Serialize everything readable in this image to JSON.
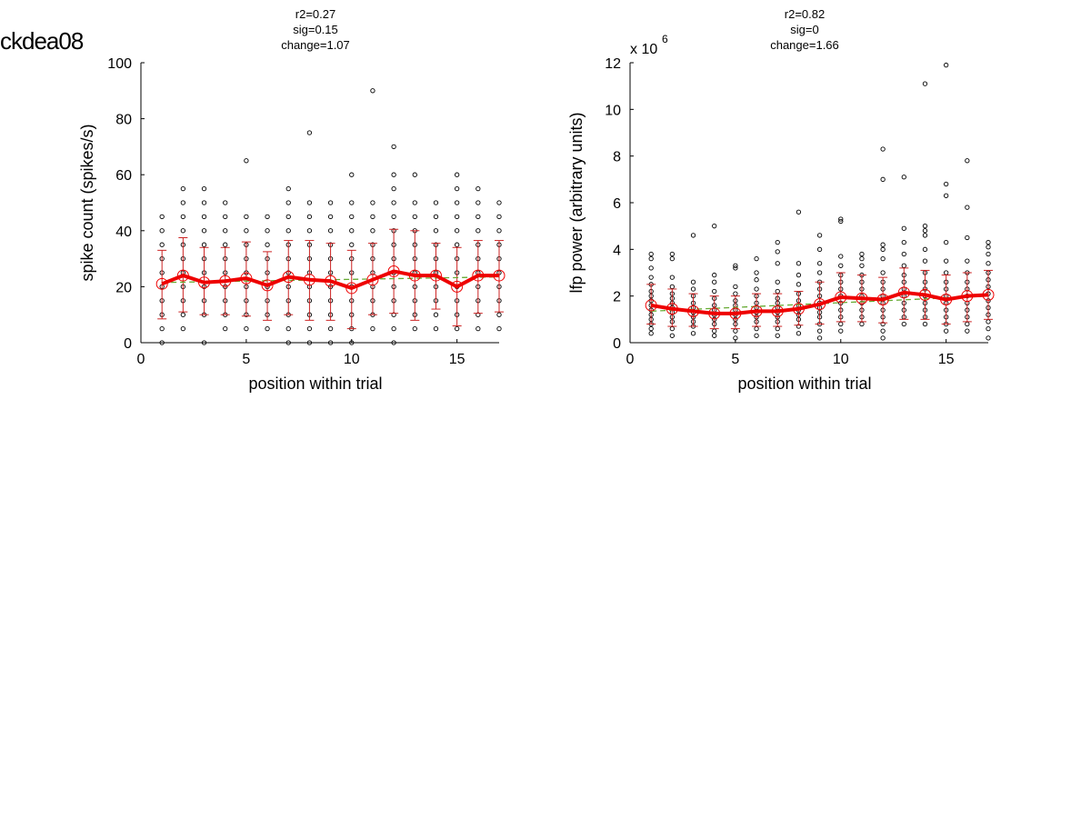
{
  "figure_title": "ckdea08",
  "colors": {
    "mean_line": "#ee0000",
    "error_bar": "#cc2222",
    "trend_line": "#66aa33",
    "points": "#000000"
  },
  "chart_data": [
    {
      "type": "scatter",
      "stats": [
        "r2=0.27",
        "sig=0.15",
        "change=1.07"
      ],
      "xlabel": "position within trial",
      "ylabel": "spike count (spikes/s)",
      "xlim": [
        0,
        17
      ],
      "ylim": [
        0,
        100
      ],
      "xticks": [
        0,
        5,
        10,
        15
      ],
      "yticks": [
        0,
        20,
        40,
        60,
        80,
        100
      ],
      "scale_note": "",
      "positions": [
        1,
        2,
        3,
        4,
        5,
        6,
        7,
        8,
        9,
        10,
        11,
        12,
        13,
        14,
        15,
        16,
        17
      ],
      "mean": [
        21,
        24,
        21.5,
        22,
        23,
        20.5,
        23.5,
        22.5,
        22,
        19.5,
        22.5,
        25.5,
        24,
        24,
        20,
        24,
        24
      ],
      "error_low": [
        8.5,
        11,
        10,
        10,
        9.5,
        8,
        10,
        8,
        8,
        5,
        10,
        10.5,
        8,
        12,
        6,
        10.5,
        11
      ],
      "error_high": [
        33,
        37.5,
        34,
        34,
        36,
        32.5,
        36.5,
        36.5,
        35.5,
        33,
        35.5,
        40.5,
        40,
        35.5,
        34,
        36.5,
        36.5
      ],
      "trend": [
        21.5,
        23.5
      ],
      "points": [
        [
          0,
          5,
          10,
          15,
          20,
          25,
          30,
          35,
          40,
          45
        ],
        [
          5,
          10,
          15,
          20,
          25,
          30,
          35,
          40,
          45,
          50,
          55
        ],
        [
          0,
          10,
          15,
          20,
          25,
          30,
          35,
          40,
          45,
          50,
          55
        ],
        [
          5,
          10,
          15,
          20,
          25,
          30,
          35,
          40,
          45,
          50
        ],
        [
          5,
          10,
          15,
          20,
          25,
          30,
          35,
          40,
          45,
          65
        ],
        [
          5,
          10,
          15,
          20,
          25,
          30,
          35,
          40,
          45
        ],
        [
          0,
          5,
          10,
          15,
          20,
          25,
          30,
          35,
          40,
          45,
          50,
          55
        ],
        [
          0,
          5,
          10,
          15,
          20,
          25,
          30,
          35,
          40,
          45,
          50,
          75
        ],
        [
          0,
          5,
          10,
          15,
          20,
          25,
          30,
          35,
          40,
          45,
          50
        ],
        [
          0,
          5,
          10,
          15,
          20,
          25,
          30,
          35,
          40,
          45,
          50,
          60
        ],
        [
          5,
          10,
          15,
          20,
          25,
          30,
          35,
          40,
          45,
          50,
          90
        ],
        [
          0,
          5,
          10,
          15,
          20,
          25,
          30,
          35,
          40,
          45,
          50,
          55,
          60,
          70
        ],
        [
          5,
          10,
          15,
          20,
          25,
          30,
          35,
          40,
          45,
          50,
          60
        ],
        [
          5,
          10,
          15,
          20,
          25,
          30,
          35,
          40,
          45,
          50
        ],
        [
          5,
          10,
          15,
          20,
          25,
          30,
          35,
          40,
          45,
          50,
          55,
          60
        ],
        [
          5,
          10,
          15,
          20,
          25,
          30,
          35,
          40,
          45,
          50,
          55
        ],
        [
          5,
          10,
          15,
          20,
          25,
          30,
          35,
          40,
          45,
          50
        ]
      ]
    },
    {
      "type": "scatter",
      "stats": [
        "r2=0.82",
        "sig=0",
        "change=1.66"
      ],
      "xlabel": "position within trial",
      "ylabel": "lfp power (arbitrary units)",
      "xlim": [
        0,
        17
      ],
      "ylim": [
        0,
        12
      ],
      "xticks": [
        0,
        5,
        10,
        15
      ],
      "yticks": [
        0,
        2,
        4,
        6,
        8,
        10,
        12
      ],
      "scale_note": "x 10",
      "scale_exponent": "6",
      "positions": [
        1,
        2,
        3,
        4,
        5,
        6,
        7,
        8,
        9,
        10,
        11,
        12,
        13,
        14,
        15,
        16,
        17
      ],
      "mean": [
        1.6,
        1.45,
        1.35,
        1.25,
        1.25,
        1.35,
        1.35,
        1.45,
        1.65,
        1.95,
        1.9,
        1.85,
        2.15,
        2.05,
        1.85,
        2.0,
        2.05
      ],
      "error_low": [
        0.8,
        0.7,
        0.7,
        0.6,
        0.6,
        0.7,
        0.7,
        0.75,
        0.8,
        0.9,
        0.9,
        0.85,
        1.0,
        1.0,
        0.8,
        0.9,
        1.0
      ],
      "error_high": [
        2.5,
        2.3,
        2.1,
        2.0,
        2.0,
        2.1,
        2.1,
        2.2,
        2.6,
        3.0,
        2.9,
        2.8,
        3.2,
        3.1,
        2.9,
        3.0,
        3.1
      ],
      "trend": [
        1.35,
        2.0
      ],
      "points": [
        [
          0.4,
          0.6,
          0.8,
          1.0,
          1.2,
          1.4,
          1.6,
          1.8,
          2.0,
          2.2,
          2.5,
          2.8,
          3.2,
          3.6,
          3.8
        ],
        [
          0.3,
          0.6,
          0.9,
          1.1,
          1.3,
          1.5,
          1.7,
          1.9,
          2.1,
          2.4,
          2.8,
          3.6,
          3.8
        ],
        [
          0.4,
          0.7,
          0.9,
          1.1,
          1.3,
          1.5,
          1.7,
          2.0,
          2.3,
          2.6,
          4.6
        ],
        [
          0.3,
          0.5,
          0.8,
          1.0,
          1.2,
          1.4,
          1.6,
          1.9,
          2.2,
          2.6,
          2.9,
          5.0
        ],
        [
          0.2,
          0.5,
          0.8,
          1.0,
          1.2,
          1.4,
          1.6,
          1.8,
          2.1,
          2.4,
          3.2,
          3.3
        ],
        [
          0.3,
          0.6,
          0.9,
          1.1,
          1.3,
          1.5,
          1.7,
          2.0,
          2.3,
          2.7,
          3.0,
          3.6
        ],
        [
          0.3,
          0.6,
          0.9,
          1.1,
          1.3,
          1.5,
          1.7,
          1.9,
          2.2,
          2.6,
          3.4,
          3.9,
          4.3
        ],
        [
          0.4,
          0.7,
          1.0,
          1.2,
          1.4,
          1.6,
          1.8,
          2.1,
          2.5,
          2.9,
          3.4,
          5.6
        ],
        [
          0.2,
          0.5,
          0.8,
          1.1,
          1.3,
          1.5,
          1.7,
          2.0,
          2.3,
          2.6,
          3.0,
          3.4,
          4.0,
          4.6
        ],
        [
          0.5,
          0.8,
          1.1,
          1.4,
          1.7,
          2.0,
          2.3,
          2.6,
          2.9,
          3.3,
          3.7,
          5.2,
          5.3
        ],
        [
          0.8,
          1.1,
          1.4,
          1.7,
          2.0,
          2.3,
          2.6,
          2.9,
          3.3,
          3.6,
          3.8
        ],
        [
          0.2,
          0.5,
          0.8,
          1.1,
          1.4,
          1.7,
          2.0,
          2.3,
          2.6,
          3.0,
          3.6,
          4.0,
          4.2,
          7.0,
          8.3
        ],
        [
          0.8,
          1.1,
          1.4,
          1.7,
          2.0,
          2.3,
          2.6,
          2.9,
          3.3,
          3.8,
          4.3,
          4.9,
          7.1
        ],
        [
          0.8,
          1.1,
          1.4,
          1.7,
          2.0,
          2.3,
          2.6,
          3.0,
          3.5,
          4.0,
          4.6,
          4.8,
          5.0,
          11.1
        ],
        [
          0.5,
          0.8,
          1.1,
          1.4,
          1.7,
          2.0,
          2.3,
          2.6,
          3.0,
          3.5,
          4.3,
          6.3,
          6.8,
          11.9
        ],
        [
          0.5,
          0.8,
          1.1,
          1.4,
          1.7,
          2.0,
          2.3,
          2.6,
          3.0,
          3.5,
          4.5,
          5.8,
          7.8
        ],
        [
          0.2,
          0.6,
          0.9,
          1.2,
          1.5,
          1.8,
          2.1,
          2.4,
          2.7,
          3.0,
          3.4,
          3.8,
          4.1,
          4.3
        ]
      ]
    }
  ]
}
